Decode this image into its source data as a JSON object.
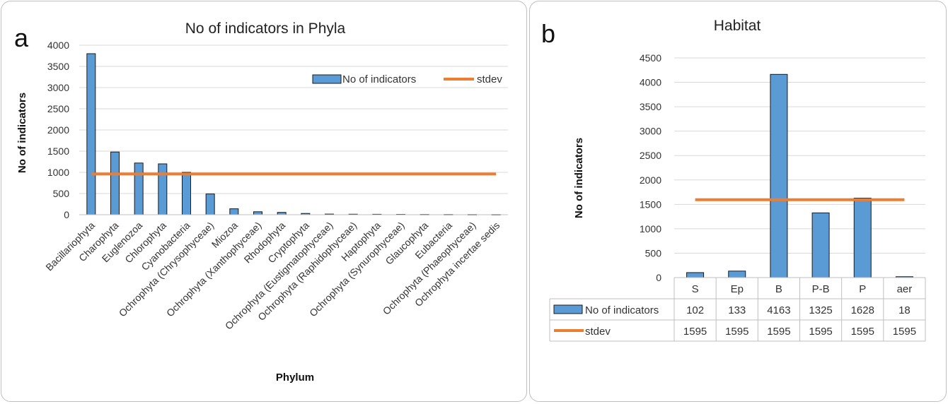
{
  "colors": {
    "bar": "#5b9bd5",
    "bar_edge": "#1a1a1a",
    "line": "#ed7d31",
    "grid": "#d9d9d9"
  },
  "panel_a": {
    "letter": "a"
  },
  "panel_b": {
    "letter": "b"
  },
  "chart_data": [
    {
      "type": "bar",
      "title": "No of indicators in Phyla",
      "xlabel": "Phylum",
      "ylabel": "No of indicators",
      "ylim": [
        0,
        4000
      ],
      "yticks": [
        0,
        500,
        1000,
        1500,
        2000,
        2500,
        3000,
        3500,
        4000
      ],
      "categories": [
        "Bacillariophyta",
        "Charophyta",
        "Euglenozoa",
        "Chlorophyta",
        "Cyanobacteria",
        "Ochrophyta (Chrysophyceae)",
        "Miozoa",
        "Ochrophyta (Xanthophyceae)",
        "Rhodophyta",
        "Cryptophyta",
        "Ochrophyta (Eustigmatophyceae)",
        "Ochrophyta (Raphidophyceae)",
        "Haptophyta",
        "Ochrophyta (Synurophyceae)",
        "Glaucophyta",
        "Eubacteria",
        "Ochrophyta (Phaeophyceae)",
        "Ochrophyta incertae sedis"
      ],
      "series": [
        {
          "name": "No of indicators",
          "type": "bar",
          "values": [
            3800,
            1480,
            1220,
            1200,
            1000,
            490,
            140,
            70,
            55,
            30,
            15,
            12,
            10,
            8,
            6,
            5,
            4,
            3
          ]
        },
        {
          "name": "stdev",
          "type": "line",
          "values": [
            960,
            960,
            960,
            960,
            960,
            960,
            960,
            960,
            960,
            960,
            960,
            960,
            960,
            960,
            960,
            960,
            960,
            960
          ]
        }
      ],
      "legend": "top-right",
      "grid": true
    },
    {
      "type": "bar",
      "title": "Habitat",
      "xlabel": "",
      "ylabel": "No of indicators",
      "ylim": [
        0,
        4500
      ],
      "yticks": [
        0,
        500,
        1000,
        1500,
        2000,
        2500,
        3000,
        3500,
        4000,
        4500
      ],
      "categories": [
        "S",
        "Ep",
        "B",
        "P-B",
        "P",
        "aer"
      ],
      "series": [
        {
          "name": "No of indicators",
          "type": "bar",
          "values": [
            102,
            133,
            4163,
            1325,
            1628,
            18
          ]
        },
        {
          "name": "stdev",
          "type": "line",
          "values": [
            1595,
            1595,
            1595,
            1595,
            1595,
            1595
          ]
        }
      ],
      "data_table": true,
      "grid": true
    }
  ]
}
